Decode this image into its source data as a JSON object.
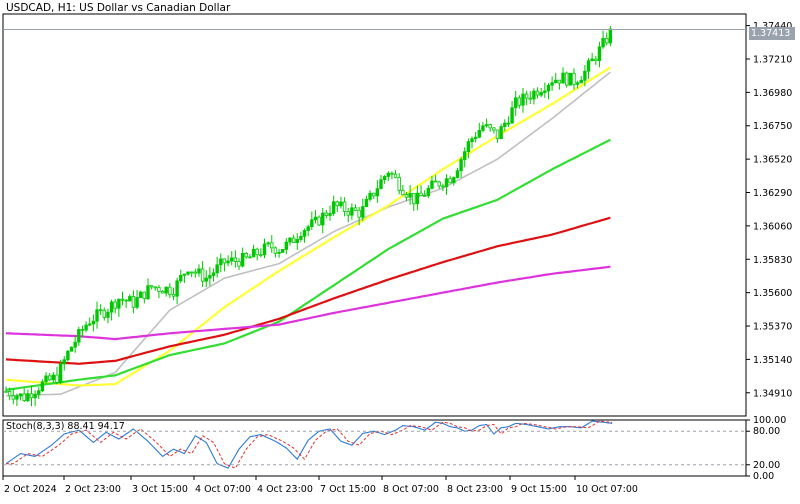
{
  "header": {
    "symbol": "USDCAD",
    "timeframe": "H1",
    "description": "US Dollar vs Canadian Dollar",
    "title": "USDCAD, H1:  US Dollar vs Canadian Dollar"
  },
  "price_tag": "1.37413",
  "stochastic": {
    "label": "Stoch(8,3,3) 88.41 94.17",
    "levels": [
      "100.00",
      "80.00",
      "20.00",
      "0.00"
    ]
  },
  "colors": {
    "bull": "#00c800",
    "bear": "#00c800",
    "ma_fast": "#c0c0c0",
    "ma_yellow": "#ffff33",
    "ma_green": "#33dd33",
    "ma_red": "#dd1111",
    "ma_magenta": "#dd33dd",
    "stoch_main": "#2b7bd8",
    "stoch_signal": "#e03030"
  },
  "chart_data": {
    "type": "candlestick",
    "symbol": "USDCAD",
    "timeframe": "H1",
    "y_ticks": [
      "1.37440",
      "1.37210",
      "1.36980",
      "1.36750",
      "1.36520",
      "1.36290",
      "1.36060",
      "1.35830",
      "1.35600",
      "1.35370",
      "1.35140",
      "1.34910"
    ],
    "x_ticks": [
      "2 Oct 2024",
      "2 Oct 23:00",
      "3 Oct 15:00",
      "4 Oct 07:00",
      "4 Oct 23:00",
      "7 Oct 15:00",
      "8 Oct 07:00",
      "8 Oct 23:00",
      "9 Oct 15:00",
      "10 Oct 07:00"
    ],
    "ylim": [
      1.3475,
      1.3752
    ],
    "last_price": 1.37413,
    "close_path": [
      [
        0,
        1.3492
      ],
      [
        10,
        1.3488
      ],
      [
        20,
        1.3497
      ],
      [
        28,
        1.3502
      ],
      [
        35,
        1.3521
      ],
      [
        45,
        1.354
      ],
      [
        55,
        1.3548
      ],
      [
        62,
        1.3556
      ],
      [
        70,
        1.3553
      ],
      [
        80,
        1.3564
      ],
      [
        92,
        1.3562
      ],
      [
        100,
        1.3578
      ],
      [
        104,
        1.3574
      ],
      [
        110,
        1.357
      ],
      [
        120,
        1.3581
      ],
      [
        132,
        1.3583
      ],
      [
        145,
        1.3592
      ],
      [
        150,
        1.359
      ],
      [
        156,
        1.3594
      ],
      [
        162,
        1.3603
      ],
      [
        170,
        1.3608
      ],
      [
        180,
        1.362
      ],
      [
        187,
        1.3617
      ],
      [
        195,
        1.3615
      ],
      [
        205,
        1.3635
      ],
      [
        210,
        1.3644
      ],
      [
        218,
        1.3632
      ],
      [
        225,
        1.3623
      ],
      [
        235,
        1.3634
      ],
      [
        245,
        1.364
      ],
      [
        255,
        1.3665
      ],
      [
        262,
        1.3675
      ],
      [
        270,
        1.3668
      ],
      [
        280,
        1.369
      ],
      [
        290,
        1.3698
      ],
      [
        300,
        1.3707
      ],
      [
        306,
        1.3708
      ],
      [
        312,
        1.3706
      ],
      [
        318,
        1.3712
      ],
      [
        326,
        1.3727
      ],
      [
        333,
        1.3741
      ]
    ],
    "moving_averages": [
      {
        "color_key": "ma_fast",
        "points": [
          [
            0,
            1.3489
          ],
          [
            30,
            1.349
          ],
          [
            60,
            1.3505
          ],
          [
            90,
            1.3548
          ],
          [
            120,
            1.357
          ],
          [
            150,
            1.358
          ],
          [
            180,
            1.3602
          ],
          [
            210,
            1.3619
          ],
          [
            240,
            1.3632
          ],
          [
            270,
            1.3652
          ],
          [
            300,
            1.368
          ],
          [
            333,
            1.3713
          ]
        ]
      },
      {
        "color_key": "ma_yellow",
        "points": [
          [
            0,
            1.35
          ],
          [
            40,
            1.3496
          ],
          [
            60,
            1.3497
          ],
          [
            90,
            1.352
          ],
          [
            120,
            1.355
          ],
          [
            150,
            1.3575
          ],
          [
            180,
            1.3598
          ],
          [
            210,
            1.362
          ],
          [
            240,
            1.3645
          ],
          [
            270,
            1.3668
          ],
          [
            300,
            1.369
          ],
          [
            333,
            1.3716
          ]
        ]
      },
      {
        "color_key": "ma_green",
        "points": [
          [
            0,
            1.3493
          ],
          [
            40,
            1.35
          ],
          [
            60,
            1.3503
          ],
          [
            90,
            1.3517
          ],
          [
            120,
            1.3525
          ],
          [
            150,
            1.354
          ],
          [
            180,
            1.3565
          ],
          [
            210,
            1.359
          ],
          [
            240,
            1.3611
          ],
          [
            270,
            1.3624
          ],
          [
            300,
            1.3645
          ],
          [
            333,
            1.3666
          ]
        ]
      },
      {
        "color_key": "ma_red",
        "points": [
          [
            0,
            1.3514
          ],
          [
            40,
            1.3511
          ],
          [
            60,
            1.3513
          ],
          [
            90,
            1.3523
          ],
          [
            120,
            1.3531
          ],
          [
            150,
            1.3542
          ],
          [
            180,
            1.3556
          ],
          [
            210,
            1.3569
          ],
          [
            240,
            1.3581
          ],
          [
            270,
            1.3592
          ],
          [
            300,
            1.36
          ],
          [
            333,
            1.3612
          ]
        ]
      },
      {
        "color_key": "ma_magenta",
        "points": [
          [
            0,
            1.3532
          ],
          [
            40,
            1.353
          ],
          [
            60,
            1.3528
          ],
          [
            90,
            1.3532
          ],
          [
            120,
            1.3535
          ],
          [
            150,
            1.3538
          ],
          [
            180,
            1.3546
          ],
          [
            210,
            1.3553
          ],
          [
            240,
            1.356
          ],
          [
            270,
            1.3567
          ],
          [
            300,
            1.3573
          ],
          [
            333,
            1.3578
          ]
        ]
      }
    ],
    "stochastic_main": [
      [
        0,
        22
      ],
      [
        8,
        40
      ],
      [
        16,
        35
      ],
      [
        25,
        55
      ],
      [
        32,
        75
      ],
      [
        40,
        82
      ],
      [
        48,
        60
      ],
      [
        55,
        78
      ],
      [
        62,
        66
      ],
      [
        70,
        84
      ],
      [
        78,
        62
      ],
      [
        86,
        35
      ],
      [
        92,
        48
      ],
      [
        98,
        40
      ],
      [
        104,
        72
      ],
      [
        110,
        60
      ],
      [
        116,
        22
      ],
      [
        122,
        14
      ],
      [
        128,
        48
      ],
      [
        134,
        70
      ],
      [
        140,
        74
      ],
      [
        148,
        62
      ],
      [
        154,
        50
      ],
      [
        160,
        30
      ],
      [
        166,
        64
      ],
      [
        172,
        80
      ],
      [
        178,
        84
      ],
      [
        184,
        62
      ],
      [
        190,
        55
      ],
      [
        196,
        76
      ],
      [
        202,
        80
      ],
      [
        208,
        74
      ],
      [
        214,
        82
      ],
      [
        218,
        90
      ],
      [
        224,
        88
      ],
      [
        230,
        82
      ],
      [
        236,
        96
      ],
      [
        240,
        94
      ],
      [
        244,
        88
      ],
      [
        248,
        86
      ],
      [
        252,
        80
      ],
      [
        256,
        82
      ],
      [
        260,
        90
      ],
      [
        264,
        92
      ],
      [
        268,
        75
      ],
      [
        272,
        86
      ],
      [
        276,
        88
      ],
      [
        280,
        94
      ],
      [
        286,
        92
      ],
      [
        292,
        88
      ],
      [
        298,
        84
      ],
      [
        304,
        88
      ],
      [
        310,
        88
      ],
      [
        316,
        86
      ],
      [
        322,
        98
      ],
      [
        328,
        96
      ],
      [
        333,
        94
      ]
    ]
  }
}
